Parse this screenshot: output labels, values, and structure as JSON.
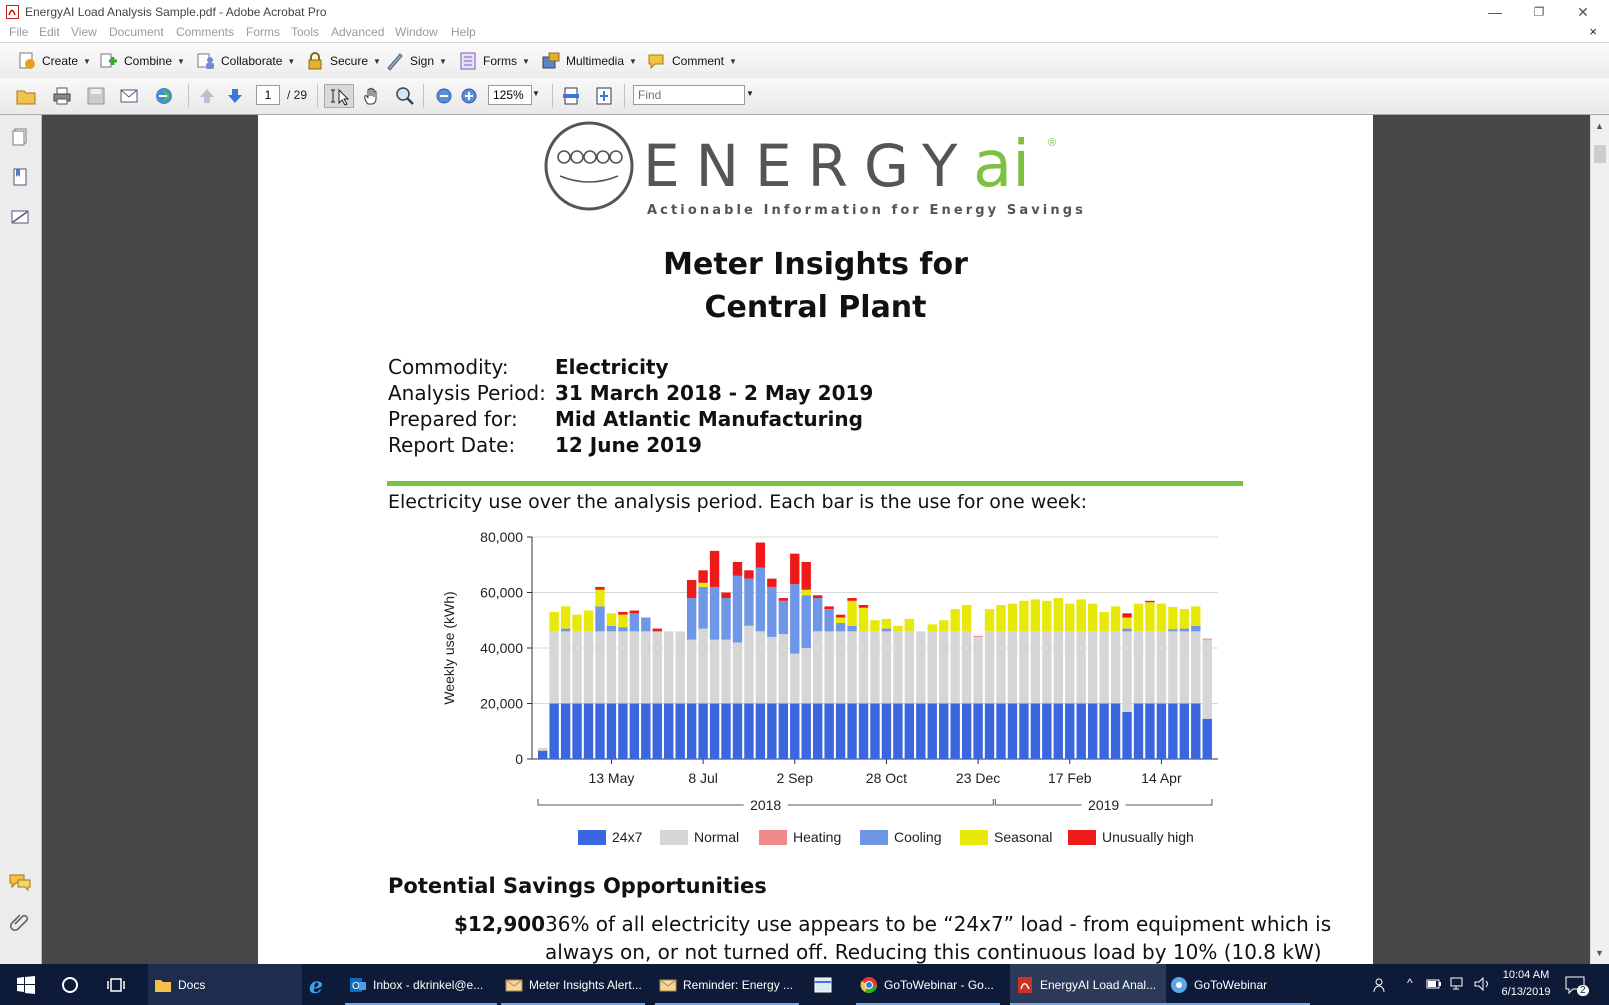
{
  "window": {
    "title": "EnergyAI Load Analysis Sample.pdf - Adobe Acrobat Pro",
    "minimize": "—",
    "restore": "❐",
    "close": "✕",
    "doc_close": "×"
  },
  "menu": [
    "File",
    "Edit",
    "View",
    "Document",
    "Comments",
    "Forms",
    "Tools",
    "Advanced",
    "Window",
    "Help"
  ],
  "toolbar": {
    "create": "Create",
    "combine": "Combine",
    "collaborate": "Collaborate",
    "secure": "Secure",
    "sign": "Sign",
    "forms": "Forms",
    "multimedia": "Multimedia",
    "comment": "Comment"
  },
  "nav": {
    "page_current": "1",
    "page_total": "/ 29",
    "zoom": "125%",
    "find_placeholder": "Find"
  },
  "document": {
    "logo_word": "ENERGY",
    "logo_ai": "ai",
    "logo_tagline": "Actionable Information for Energy Savings",
    "logo_reg": "®",
    "title_line1": "Meter Insights for",
    "title_line2": "Central Plant",
    "info": [
      {
        "label": "Commodity:",
        "value": "Electricity"
      },
      {
        "label": "Analysis Period:",
        "value": "31 March 2018 - 2 May 2019"
      },
      {
        "label": "Prepared for:",
        "value": "Mid Atlantic Manufacturing"
      },
      {
        "label": "Report Date:",
        "value": "12 June 2019"
      }
    ],
    "chart_intro": "Electricity use over the analysis period. Each bar is the use for one week:",
    "savings_heading": "Potential Savings Opportunities",
    "savings_amount": "$12,900",
    "savings_text": "36% of all electricity use appears to be “24x7” load - from equipment which is",
    "savings_text2": "always on, or not turned off. Reducing this continuous load by 10% (10.8 kW)"
  },
  "chart_data": {
    "type": "bar",
    "stacked": true,
    "ylabel": "Weekly use (kWh)",
    "ylim": [
      0,
      80000
    ],
    "yticks": [
      "80,000",
      "60,000",
      "40,000",
      "20,000",
      "0"
    ],
    "xtick_labels": [
      "13 May",
      "8 Jul",
      "2 Sep",
      "28 Oct",
      "23 Dec",
      "17 Feb",
      "14 Apr"
    ],
    "xtick_weeks": [
      6,
      14,
      22,
      30,
      38,
      46,
      54
    ],
    "year_labels": [
      "2018",
      "2019"
    ],
    "grid": true,
    "legend_position": "bottom",
    "colors": {
      "24x7": "#3b66dd",
      "Normal": "#d6d6d6",
      "Heating": "#f08a8a",
      "Cooling": "#6e97e8",
      "Seasonal": "#e8e80a",
      "Unusually high": "#ee1a1a"
    },
    "series": [
      {
        "name": "24x7",
        "values": [
          3000,
          20000,
          20000,
          20000,
          20000,
          20000,
          20000,
          20000,
          20000,
          20000,
          20000,
          20000,
          20000,
          20000,
          20000,
          20000,
          20000,
          20000,
          20000,
          20000,
          20000,
          20000,
          20000,
          20000,
          20000,
          20000,
          20000,
          20000,
          20000,
          20000,
          20000,
          20000,
          20000,
          20000,
          20000,
          20000,
          20000,
          20000,
          20000,
          20000,
          20000,
          20000,
          20000,
          20000,
          20000,
          20000,
          20000,
          20000,
          20000,
          20000,
          20000,
          17000,
          20000,
          20000,
          20000,
          20000,
          20000,
          20000,
          14500
        ]
      },
      {
        "name": "Normal",
        "values": [
          1000,
          26000,
          26000,
          26000,
          26000,
          26000,
          26000,
          26000,
          26000,
          26000,
          26000,
          26000,
          26000,
          23000,
          27000,
          23000,
          23000,
          22000,
          28000,
          26000,
          24000,
          25000,
          18000,
          20000,
          26000,
          26000,
          26000,
          26000,
          26000,
          26000,
          26000,
          26000,
          26000,
          26000,
          26000,
          26000,
          26000,
          26000,
          24000,
          26000,
          26000,
          26000,
          26000,
          26000,
          26000,
          26000,
          26000,
          26000,
          26000,
          26000,
          26000,
          29000,
          26000,
          26000,
          26000,
          26000,
          26000,
          26000,
          28500
        ]
      },
      {
        "name": "Heating",
        "values": [
          0,
          0,
          0,
          0,
          0,
          0,
          0,
          0,
          0,
          0,
          0,
          0,
          0,
          0,
          0,
          0,
          0,
          0,
          0,
          0,
          0,
          0,
          0,
          0,
          0,
          0,
          0,
          0,
          0,
          0,
          0,
          0,
          0,
          0,
          0,
          0,
          0,
          0,
          400,
          0,
          0,
          0,
          0,
          0,
          0,
          0,
          0,
          0,
          0,
          0,
          0,
          0,
          0,
          0,
          0,
          0,
          0,
          0,
          400
        ]
      },
      {
        "name": "Cooling",
        "values": [
          0,
          0,
          1000,
          0,
          0,
          9000,
          2000,
          1500,
          6500,
          5000,
          0,
          0,
          0,
          15000,
          15000,
          19000,
          15000,
          24000,
          17000,
          23000,
          18000,
          12000,
          25000,
          19000,
          12000,
          8000,
          3000,
          2000,
          0,
          0,
          1000,
          0,
          0,
          0,
          0,
          0,
          0,
          0,
          0,
          0,
          0,
          0,
          0,
          0,
          0,
          0,
          0,
          0,
          0,
          0,
          0,
          1000,
          0,
          0,
          0,
          800,
          1000,
          2000,
          0
        ]
      },
      {
        "name": "Seasonal",
        "values": [
          0,
          7000,
          8000,
          6000,
          7500,
          6000,
          4500,
          4500,
          0,
          0,
          0,
          0,
          0,
          0,
          1500,
          0,
          0,
          0,
          0,
          0,
          0,
          0,
          0,
          2000,
          0,
          0,
          2000,
          9000,
          8500,
          4000,
          3500,
          2000,
          4500,
          0,
          2500,
          4000,
          8000,
          9500,
          0,
          8000,
          9500,
          10000,
          11000,
          11500,
          11000,
          12000,
          10000,
          11500,
          10000,
          7000,
          9000,
          4000,
          10000,
          10500,
          10000,
          8000,
          7000,
          7000,
          0
        ]
      },
      {
        "name": "Unusually high",
        "values": [
          0,
          0,
          0,
          0,
          0,
          1000,
          0,
          1000,
          1000,
          0,
          1000,
          0,
          0,
          6500,
          4500,
          13000,
          2000,
          5000,
          3000,
          9000,
          3000,
          1000,
          11000,
          10000,
          1000,
          1000,
          1000,
          1000,
          1000,
          0,
          0,
          0,
          0,
          0,
          0,
          0,
          0,
          0,
          0,
          0,
          0,
          0,
          0,
          0,
          0,
          0,
          0,
          0,
          0,
          0,
          0,
          1500,
          0,
          500,
          0,
          0,
          0,
          0,
          0
        ]
      }
    ]
  },
  "navpane": [
    "pages-icon",
    "bookmarks-icon",
    "signatures-icon"
  ],
  "taskbar": {
    "items": [
      {
        "label": "Docs"
      },
      {
        "label": "Inbox - dkrinkel@e..."
      },
      {
        "label": "Meter Insights Alert..."
      },
      {
        "label": "Reminder: Energy ..."
      },
      {
        "label": "GoToWebinar - Go..."
      },
      {
        "label": "EnergyAI Load Anal..."
      },
      {
        "label": "GoToWebinar"
      }
    ],
    "time": "10:04 AM",
    "date": "6/13/2019",
    "notif_count": "2"
  }
}
